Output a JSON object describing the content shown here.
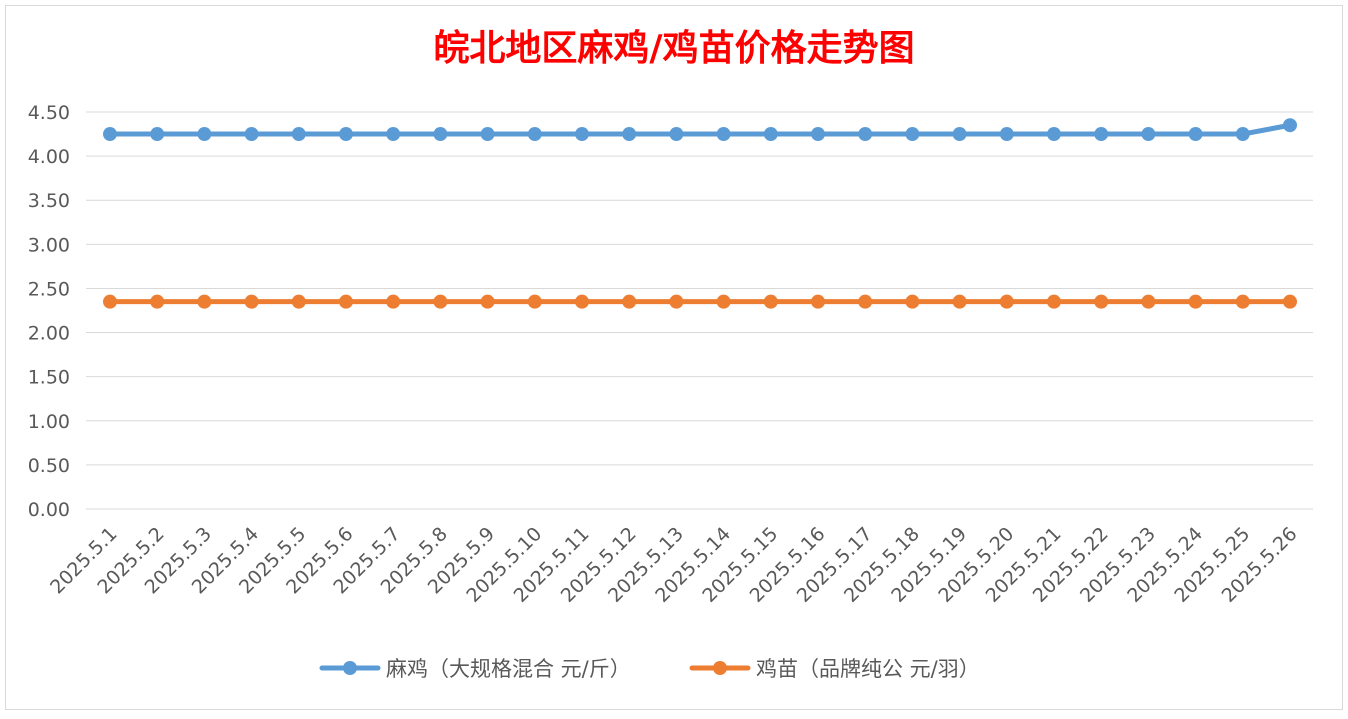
{
  "chart_data": {
    "type": "line",
    "title": "皖北地区麻鸡/鸡苗价格走势图",
    "title_color": "#ff0000",
    "categories": [
      "2025.5.1",
      "2025.5.2",
      "2025.5.3",
      "2025.5.4",
      "2025.5.5",
      "2025.5.6",
      "2025.5.7",
      "2025.5.8",
      "2025.5.9",
      "2025.5.10",
      "2025.5.11",
      "2025.5.12",
      "2025.5.13",
      "2025.5.14",
      "2025.5.15",
      "2025.5.16",
      "2025.5.17",
      "2025.5.18",
      "2025.5.19",
      "2025.5.20",
      "2025.5.21",
      "2025.5.22",
      "2025.5.23",
      "2025.5.24",
      "2025.5.25",
      "2025.5.26"
    ],
    "series": [
      {
        "name": "麻鸡（大规格混合 元/斤）",
        "color": "#5b9bd5",
        "values": [
          4.25,
          4.25,
          4.25,
          4.25,
          4.25,
          4.25,
          4.25,
          4.25,
          4.25,
          4.25,
          4.25,
          4.25,
          4.25,
          4.25,
          4.25,
          4.25,
          4.25,
          4.25,
          4.25,
          4.25,
          4.25,
          4.25,
          4.25,
          4.25,
          4.25,
          4.35
        ]
      },
      {
        "name": "鸡苗（品牌纯公 元/羽）",
        "color": "#ed7d31",
        "values": [
          2.35,
          2.35,
          2.35,
          2.35,
          2.35,
          2.35,
          2.35,
          2.35,
          2.35,
          2.35,
          2.35,
          2.35,
          2.35,
          2.35,
          2.35,
          2.35,
          2.35,
          2.35,
          2.35,
          2.35,
          2.35,
          2.35,
          2.35,
          2.35,
          2.35,
          2.35
        ]
      }
    ],
    "yticks": [
      "0.00",
      "0.50",
      "1.00",
      "1.50",
      "2.00",
      "2.50",
      "3.00",
      "3.50",
      "4.00",
      "4.50"
    ],
    "ylim": [
      0,
      4.5
    ],
    "grid": true,
    "legend_position": "bottom"
  }
}
